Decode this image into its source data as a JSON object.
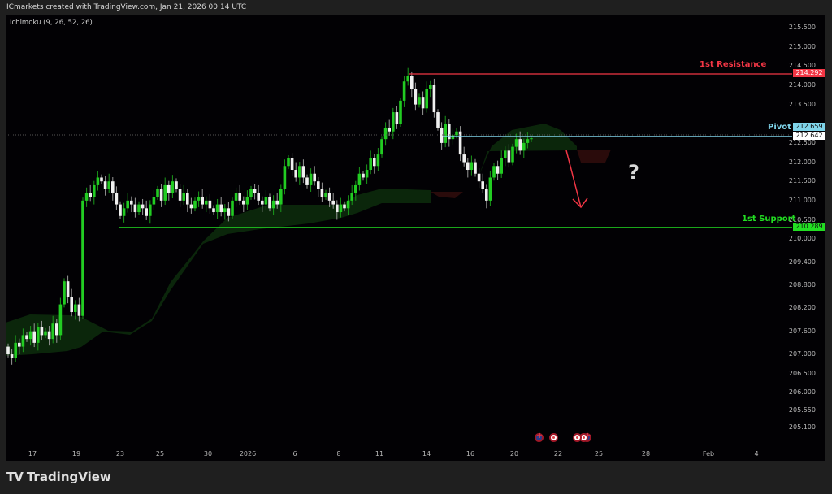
{
  "header": {
    "title": "ICmarkets created with TradingView.com, Jan 21, 2026 00:14 UTC"
  },
  "indicator": {
    "label": "Ichimoku (9, 26, 52, 26)"
  },
  "price_axis": {
    "labels": [
      "215.500",
      "215.000",
      "214.500",
      "214.000",
      "213.500",
      "212.500",
      "212.000",
      "211.500",
      "211.000",
      "210.500",
      "210.000",
      "209.400",
      "208.800",
      "208.200",
      "207.600",
      "207.000",
      "206.500",
      "206.000",
      "205.550",
      "205.100"
    ],
    "values": [
      215.5,
      215.0,
      214.5,
      214.0,
      213.5,
      212.5,
      212.0,
      211.5,
      211.0,
      210.5,
      210.0,
      209.4,
      208.8,
      208.2,
      207.6,
      207.0,
      206.5,
      206.0,
      205.55,
      205.1
    ]
  },
  "time_axis": {
    "labels": [
      "17",
      "19",
      "23",
      "25",
      "30",
      "2026",
      "6",
      "8",
      "11",
      "14",
      "16",
      "20",
      "22",
      "25",
      "28",
      "Feb",
      "4"
    ]
  },
  "levels": {
    "resistance": {
      "label": "1st Resistance",
      "value": "214.292",
      "color": "#f23645"
    },
    "pivot": {
      "label": "Pivot",
      "value": "212.659",
      "color": "#7fd4ea"
    },
    "current_price": {
      "value": "212.642"
    },
    "support": {
      "label": "1st Support",
      "value": "210.289",
      "color": "#22dd22"
    }
  },
  "annotation": {
    "question": "?",
    "arrow_color": "#f23645"
  },
  "events": [
    {
      "icon": "uk-flag-icon"
    },
    {
      "icon": "japan-flag-icon"
    },
    {
      "icon": "japan-flag-icon"
    },
    {
      "icon": "japan-flag-icon"
    },
    {
      "icon": "uk-flag-icon"
    }
  ],
  "colors": {
    "bull": "#22cc22",
    "bear": "#f0f0f0",
    "cloud_bull": "#0d2a0d",
    "cloud_bear": "#2a0c0c"
  },
  "footer": {
    "brand": "TradingView"
  },
  "chart_data": {
    "type": "candlestick",
    "first_open": 207.2,
    "closes": [
      207.0,
      206.9,
      207.3,
      207.2,
      207.5,
      207.4,
      207.6,
      207.3,
      207.7,
      207.5,
      207.6,
      207.4,
      207.8,
      207.5,
      208.3,
      208.9,
      208.5,
      208.1,
      208.3,
      208.0,
      211.0,
      211.2,
      211.1,
      211.4,
      211.6,
      211.5,
      211.3,
      211.5,
      211.2,
      210.9,
      210.6,
      210.8,
      211.0,
      210.9,
      210.7,
      210.9,
      210.8,
      210.6,
      210.9,
      211.1,
      211.3,
      211.0,
      211.4,
      211.2,
      211.5,
      211.3,
      211.0,
      211.2,
      210.9,
      210.8,
      211.0,
      211.1,
      210.9,
      211.0,
      210.8,
      210.7,
      210.9,
      210.7,
      210.8,
      210.6,
      211.0,
      211.2,
      211.0,
      210.9,
      211.1,
      211.3,
      211.2,
      211.0,
      210.9,
      211.1,
      210.8,
      211.0,
      210.9,
      211.3,
      211.9,
      212.1,
      211.8,
      211.6,
      211.9,
      211.6,
      211.4,
      211.7,
      211.5,
      211.3,
      211.1,
      211.2,
      211.0,
      210.9,
      210.7,
      210.9,
      210.8,
      211.0,
      211.2,
      211.4,
      211.7,
      211.6,
      211.8,
      212.1,
      211.9,
      212.2,
      212.6,
      212.9,
      212.8,
      213.3,
      213.0,
      213.6,
      214.1,
      214.25,
      213.9,
      213.5,
      213.7,
      213.4,
      213.9,
      214.0,
      213.3,
      212.9,
      212.5,
      213.0,
      212.6,
      212.7,
      212.8,
      212.2,
      212.0,
      211.8,
      212.0,
      211.7,
      211.5,
      211.3,
      211.0,
      211.6,
      211.9,
      211.7,
      212.1,
      212.3,
      212.0,
      212.4,
      212.6,
      212.3,
      212.5,
      212.6,
      212.62
    ]
  }
}
